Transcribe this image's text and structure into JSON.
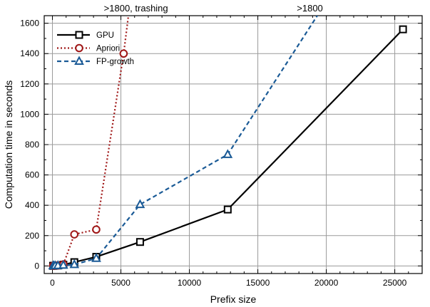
{
  "chart_data": {
    "type": "line",
    "title": "",
    "xlabel": "Prefix size",
    "ylabel": "Computation time in seconds",
    "xlim": [
      -600,
      27000
    ],
    "ylim": [
      -50,
      1650
    ],
    "x_ticks": [
      0,
      5000,
      10000,
      15000,
      20000,
      25000
    ],
    "y_ticks": [
      0,
      200,
      400,
      600,
      800,
      1000,
      1200,
      1400,
      1600
    ],
    "grid": true,
    "legend_position": "top-left",
    "series": [
      {
        "name": "GPU",
        "color": "#000000",
        "line_style": "solid",
        "marker": "square",
        "points": [
          [
            50,
            1
          ],
          [
            100,
            1
          ],
          [
            200,
            2
          ],
          [
            400,
            3
          ],
          [
            800,
            8
          ],
          [
            1600,
            25
          ],
          [
            3200,
            60
          ],
          [
            6400,
            158
          ],
          [
            12800,
            372
          ],
          [
            25600,
            1560
          ]
        ]
      },
      {
        "name": "Apriori",
        "color": "#a01818",
        "line_style": "dotted",
        "marker": "circle",
        "points": [
          [
            50,
            1
          ],
          [
            100,
            1
          ],
          [
            200,
            2
          ],
          [
            400,
            3
          ],
          [
            800,
            10
          ],
          [
            1600,
            208
          ],
          [
            3200,
            240
          ],
          [
            5200,
            1400
          ],
          [
            5900,
            1900
          ]
        ]
      },
      {
        "name": "FP-growth",
        "color": "#1a5a96",
        "line_style": "dashed",
        "marker": "triangle",
        "points": [
          [
            50,
            1
          ],
          [
            100,
            1
          ],
          [
            200,
            2
          ],
          [
            400,
            3
          ],
          [
            800,
            5
          ],
          [
            1600,
            9
          ],
          [
            3200,
            50
          ],
          [
            6400,
            405
          ],
          [
            12800,
            735
          ],
          [
            19700,
            1700
          ]
        ]
      }
    ],
    "annotations": [
      {
        "text": ">1800, trashing",
        "x": 6100
      },
      {
        "text": ">1800",
        "x": 18800
      }
    ]
  }
}
